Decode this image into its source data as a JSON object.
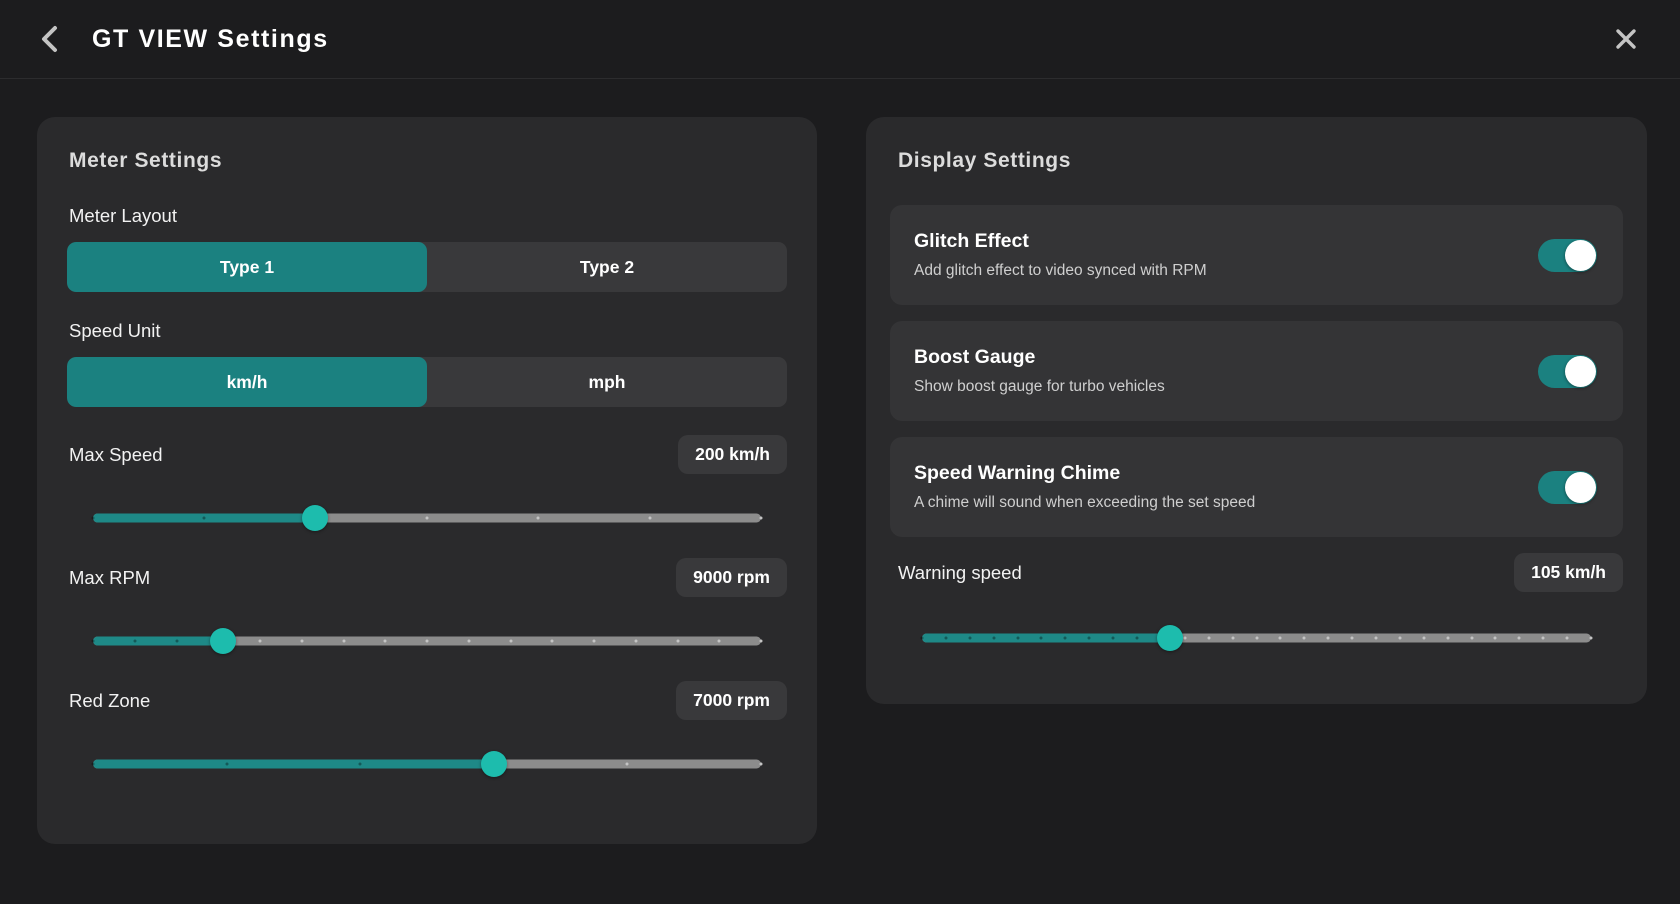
{
  "colors": {
    "accent": "#1b8180",
    "slider_fill": "#1e8987",
    "slider_thumb": "#1dbcad",
    "panel_bg": "#2a2a2c",
    "card_bg": "#343436",
    "page_bg": "#1c1c1e"
  },
  "header": {
    "title": "GT VIEW Settings",
    "back_icon": "chevron-left",
    "close_icon": "x"
  },
  "meter_settings": {
    "title": "Meter Settings",
    "meter_layout": {
      "label": "Meter Layout",
      "options": [
        "Type 1",
        "Type 2"
      ],
      "selected": "Type 1",
      "selected_index": 0
    },
    "speed_unit": {
      "label": "Speed Unit",
      "options": [
        "km/h",
        "mph"
      ],
      "selected": "km/h",
      "selected_index": 0
    },
    "sliders": [
      {
        "label": "Max Speed",
        "value": "200 km/h",
        "percent": 33.3,
        "ticks": 7
      },
      {
        "label": "Max RPM",
        "value": "9000 rpm",
        "percent": 19.5,
        "ticks": 17
      },
      {
        "label": "Red Zone",
        "value": "7000 rpm",
        "percent": 60,
        "ticks": 6
      }
    ]
  },
  "display_settings": {
    "title": "Display Settings",
    "toggles": [
      {
        "title": "Glitch Effect",
        "description": "Add glitch effect to video synced with RPM",
        "on": true
      },
      {
        "title": "Boost Gauge",
        "description": "Show boost gauge for turbo vehicles",
        "on": true
      },
      {
        "title": "Speed Warning Chime",
        "description": "A chime will sound when exceeding the set speed",
        "on": true
      }
    ],
    "warning_speed": {
      "label": "Warning speed",
      "value": "105 km/h",
      "percent": 37,
      "ticks": 29
    }
  }
}
